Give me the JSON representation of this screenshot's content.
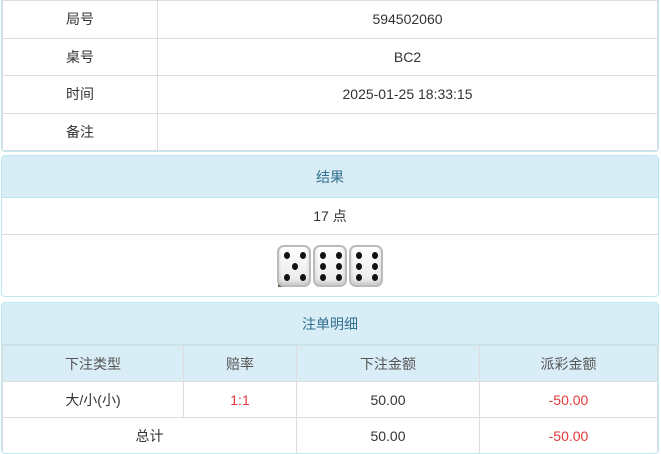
{
  "info": [
    {
      "label": "局号",
      "value": "594502060"
    },
    {
      "label": "桌号",
      "value": "BC2"
    },
    {
      "label": "时间",
      "value": "2025-01-25 18:33:15"
    },
    {
      "label": "备注",
      "value": ""
    }
  ],
  "result": {
    "title": "结果",
    "points": "17 点",
    "dice": [
      5,
      6,
      6
    ],
    "badge": "i"
  },
  "bets": {
    "title": "注单明细",
    "columns": [
      "下注类型",
      "赔率",
      "下注金额",
      "派彩金额"
    ],
    "rows": [
      {
        "type": "大/小(小)",
        "odds": "1:1",
        "amount": "50.00",
        "payout": "-50.00"
      }
    ],
    "total": {
      "label": "总计",
      "amount": "50.00",
      "payout": "-50.00"
    }
  },
  "colors": {
    "header_bg": "#d9edf7",
    "header_text": "#31708f",
    "negative": "#e4393c"
  }
}
